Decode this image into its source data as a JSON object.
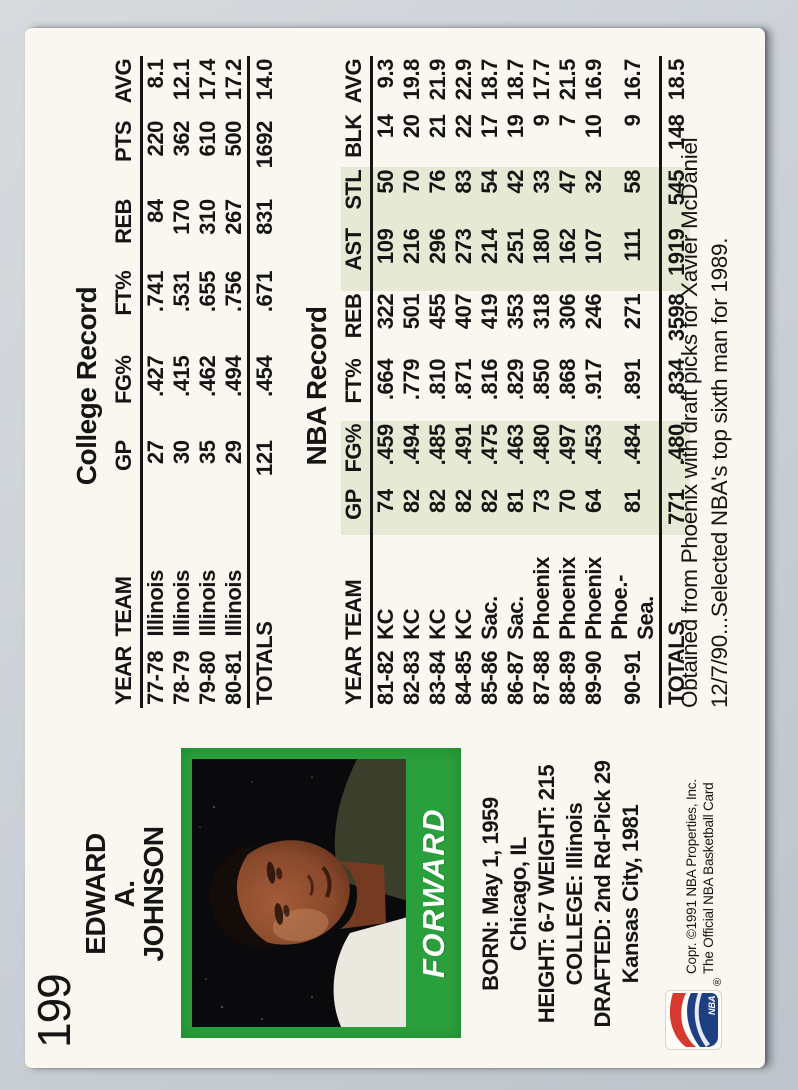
{
  "card": {
    "number": "199",
    "player_name_lines": [
      "EDWARD",
      "A.",
      "JOHNSON"
    ],
    "position": "FORWARD",
    "bio_lines": [
      "BORN: May 1, 1959",
      "Chicago, IL",
      "HEIGHT: 6-7 WEIGHT: 215",
      "COLLEGE: Illinois",
      "DRAFTED: 2nd Rd-Pick 29",
      "Kansas City, 1981"
    ],
    "copyright_lines": [
      "Copr. ©1991 NBA Properties, Inc.",
      "The Official NBA Basketball Card"
    ],
    "reg_mark": "®",
    "logo_text": "NBA"
  },
  "college_record": {
    "title": "College Record",
    "columns": [
      "YEAR",
      "TEAM",
      "GP",
      "FG%",
      "FT%",
      "REB",
      "PTS",
      "AVG"
    ],
    "rows": [
      [
        "77-78",
        "Illinois",
        "27",
        ".427",
        ".741",
        "84",
        "220",
        "8.1"
      ],
      [
        "78-79",
        "Illinois",
        "30",
        ".415",
        ".531",
        "170",
        "362",
        "12.1"
      ],
      [
        "79-80",
        "Illinois",
        "35",
        ".462",
        ".655",
        "310",
        "610",
        "17.4"
      ],
      [
        "80-81",
        "Illinois",
        "29",
        ".494",
        ".756",
        "267",
        "500",
        "17.2"
      ]
    ],
    "totals": [
      "TOTALS",
      "",
      "121",
      ".454",
      ".671",
      "831",
      "1692",
      "14.0"
    ]
  },
  "nba_record": {
    "title": "NBA Record",
    "columns": [
      "YEAR",
      "TEAM",
      "GP",
      "FG%",
      "FT%",
      "REB",
      "AST",
      "STL",
      "BLK",
      "AVG"
    ],
    "rows": [
      [
        "81-82",
        "KC",
        "74",
        ".459",
        ".664",
        "322",
        "109",
        "50",
        "14",
        "9.3"
      ],
      [
        "82-83",
        "KC",
        "82",
        ".494",
        ".779",
        "501",
        "216",
        "70",
        "20",
        "19.8"
      ],
      [
        "83-84",
        "KC",
        "82",
        ".485",
        ".810",
        "455",
        "296",
        "76",
        "21",
        "21.9"
      ],
      [
        "84-85",
        "KC",
        "82",
        ".491",
        ".871",
        "407",
        "273",
        "83",
        "22",
        "22.9"
      ],
      [
        "85-86",
        "Sac.",
        "82",
        ".475",
        ".816",
        "419",
        "214",
        "54",
        "17",
        "18.7"
      ],
      [
        "86-87",
        "Sac.",
        "81",
        ".463",
        ".829",
        "353",
        "251",
        "42",
        "19",
        "18.7"
      ],
      [
        "87-88",
        "Phoenix",
        "73",
        ".480",
        ".850",
        "318",
        "180",
        "33",
        "9",
        "17.7"
      ],
      [
        "88-89",
        "Phoenix",
        "70",
        ".497",
        ".868",
        "306",
        "162",
        "47",
        "7",
        "21.5"
      ],
      [
        "89-90",
        "Phoenix",
        "64",
        ".453",
        ".917",
        "246",
        "107",
        "32",
        "10",
        "16.9"
      ],
      [
        "90-91",
        "Phoe.-Sea.",
        "81",
        ".484",
        ".891",
        "271",
        "111",
        "58",
        "9",
        "16.7"
      ]
    ],
    "totals": [
      "TOTALS",
      "",
      "771",
      ".480",
      ".834",
      "3598",
      "1919",
      "545",
      "148",
      "18.5"
    ]
  },
  "note_lines": [
    "Obtained from Phoenix with draft picks for Xavier McDaniel",
    "12/7/90...Selected NBA's top sixth man for 1989."
  ],
  "colors": {
    "card_bg": "#f9f7ef",
    "frame_green": "#2aa03c",
    "stat_band_green": "#e6ead4",
    "logo_red": "#d6392e",
    "logo_blue": "#1e3f82",
    "scan_background": "#cbd0d6"
  }
}
